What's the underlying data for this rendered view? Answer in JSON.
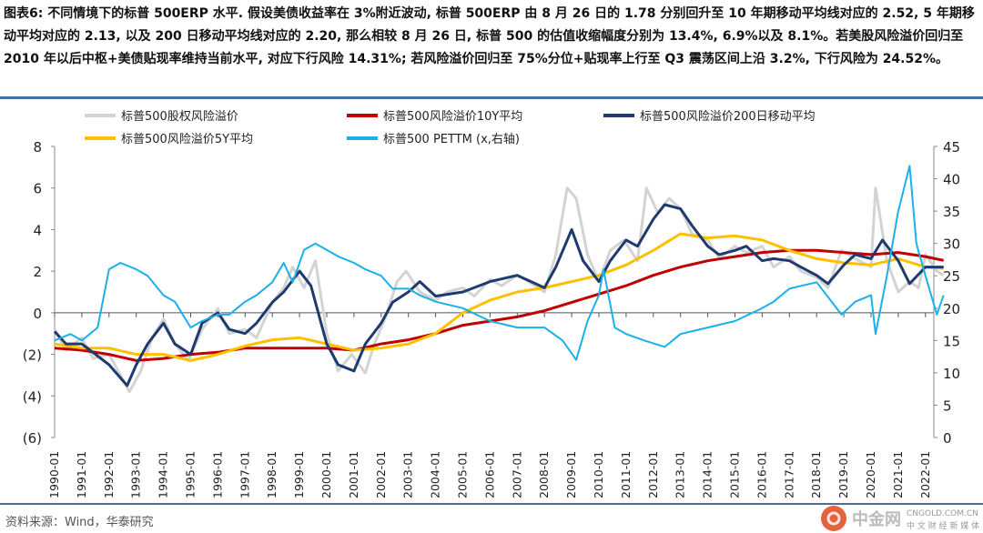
{
  "title": "图表6:  不同情境下的标普 500ERP 水平. 假设美债收益率在 3%附近波动, 标普 500ERP 由 8 月 26 日的 1.78 分别回升至 10 年期移动平均线对应的 2.52, 5 年期移动平均对应的 2.13, 以及 200 日移动平均线对应的 2.20, 那么相较 8 月 26 日, 标普 500 的估值收缩幅度分别为 13.4%, 6.9%以及 8.1%。若美股风险溢价回归至 2010 年以后中枢+美债贴现率维持当前水平, 对应下行风险 14.31%; 若风险溢价回归至 75%分位+贴现率上行至 Q3 震荡区间上沿 3.2%, 下行风险为 24.52%。",
  "source": "资料来源：Wind，华泰研究",
  "watermark": {
    "brand": "中金网",
    "domain": "CNGOLD.COM.CN",
    "tagline": "中 文 财 经 新 媒 体"
  },
  "chart_data": {
    "type": "line",
    "x_ticks": [
      "1990-01",
      "1991-01",
      "1992-01",
      "1993-01",
      "1994-01",
      "1995-01",
      "1996-01",
      "1997-01",
      "1998-01",
      "1999-01",
      "2000-01",
      "2001-01",
      "2002-01",
      "2003-01",
      "2004-01",
      "2005-01",
      "2006-01",
      "2007-01",
      "2008-01",
      "2009-01",
      "2010-01",
      "2011-01",
      "2012-01",
      "2013-01",
      "2014-01",
      "2015-01",
      "2016-01",
      "2017-01",
      "2018-01",
      "2019-01",
      "2020-01",
      "2021-01",
      "2022-01"
    ],
    "y_left": {
      "ticks": [
        "8",
        "6",
        "4",
        "2",
        "0",
        "(2)",
        "(4)",
        "(6)"
      ],
      "values": [
        8,
        6,
        4,
        2,
        0,
        -2,
        -4,
        -6
      ],
      "range": [
        -6,
        8
      ]
    },
    "y_right": {
      "ticks": [
        "45",
        "40",
        "35",
        "30",
        "25",
        "20",
        "15",
        "10",
        "5",
        "0"
      ],
      "values": [
        45,
        40,
        35,
        30,
        25,
        20,
        15,
        10,
        5,
        0
      ],
      "range": [
        0,
        45
      ]
    },
    "legend": [
      {
        "name": "标普500股权风险溢价",
        "color": "#d3d3d3"
      },
      {
        "name": "标普500风险溢价10Y平均",
        "color": "#c00000"
      },
      {
        "name": "标普500风险溢价200日移动平均",
        "color": "#1f3a6e"
      },
      {
        "name": "标普500风险溢价5Y平均",
        "color": "#ffc000"
      },
      {
        "name": "标普500 PETTM (x,右轴)",
        "color": "#1ab0ea"
      }
    ],
    "series": [
      {
        "name": "标普500股权风险溢价",
        "axis": "left",
        "color": "#d3d3d3",
        "width": 3,
        "x": [
          "1990-01",
          "1990-06",
          "1991-01",
          "1991-06",
          "1992-01",
          "1992-06",
          "1992-10",
          "1993-03",
          "1993-08",
          "1994-01",
          "1994-06",
          "1994-12",
          "1995-06",
          "1996-01",
          "1996-06",
          "1997-01",
          "1997-06",
          "1998-01",
          "1998-06",
          "1998-10",
          "1999-03",
          "1999-08",
          "2000-01",
          "2000-06",
          "2000-12",
          "2001-06",
          "2001-10",
          "2002-03",
          "2002-08",
          "2002-12",
          "2003-06",
          "2004-01",
          "2004-06",
          "2005-01",
          "2005-06",
          "2006-01",
          "2006-06",
          "2007-01",
          "2007-06",
          "2008-01",
          "2008-06",
          "2008-11",
          "2009-03",
          "2009-08",
          "2010-01",
          "2010-06",
          "2010-12",
          "2011-06",
          "2011-10",
          "2012-03",
          "2012-08",
          "2013-01",
          "2013-06",
          "2014-01",
          "2014-06",
          "2015-01",
          "2015-06",
          "2016-01",
          "2016-06",
          "2017-01",
          "2017-06",
          "2018-01",
          "2018-06",
          "2018-12",
          "2019-06",
          "2020-01",
          "2020-03",
          "2020-08",
          "2021-01",
          "2021-06",
          "2021-10",
          "2022-01",
          "2022-06",
          "2022-09"
        ],
        "y": [
          -0.8,
          -1.8,
          -1.2,
          -2.2,
          -2.0,
          -3.0,
          -3.8,
          -2.8,
          -1.2,
          -0.3,
          -1.5,
          -2.3,
          -0.8,
          0.2,
          -1.0,
          -0.8,
          -1.2,
          0.5,
          1.2,
          2.2,
          1.2,
          2.5,
          -1.0,
          -2.8,
          -2.0,
          -2.9,
          -1.5,
          -0.2,
          1.5,
          2.0,
          1.0,
          0.6,
          1.0,
          1.2,
          0.8,
          1.6,
          1.3,
          1.8,
          1.5,
          1.0,
          2.8,
          6.0,
          5.5,
          2.8,
          1.5,
          3.0,
          3.5,
          2.5,
          6.0,
          4.8,
          5.5,
          5.0,
          3.8,
          3.5,
          2.6,
          3.2,
          2.9,
          3.2,
          2.2,
          2.7,
          2.0,
          1.7,
          1.2,
          3.0,
          2.6,
          2.2,
          6.0,
          2.5,
          1.0,
          1.5,
          1.2,
          2.8,
          2.0,
          1.8
        ]
      },
      {
        "name": "标普500风险溢价10Y平均",
        "axis": "left",
        "color": "#c00000",
        "width": 3,
        "x": [
          "1990-01",
          "1991-01",
          "1992-01",
          "1993-01",
          "1994-01",
          "1995-01",
          "1996-01",
          "1997-01",
          "1998-01",
          "1999-01",
          "2000-01",
          "2001-01",
          "2002-01",
          "2003-01",
          "2004-01",
          "2005-01",
          "2006-01",
          "2007-01",
          "2008-01",
          "2009-01",
          "2010-01",
          "2011-01",
          "2012-01",
          "2013-01",
          "2014-01",
          "2015-01",
          "2016-01",
          "2017-01",
          "2018-01",
          "2019-01",
          "2020-01",
          "2021-01",
          "2022-01",
          "2022-09"
        ],
        "y": [
          -1.7,
          -1.8,
          -2.0,
          -2.3,
          -2.2,
          -2.0,
          -1.9,
          -1.7,
          -1.7,
          -1.7,
          -1.7,
          -1.8,
          -1.5,
          -1.3,
          -1.0,
          -0.6,
          -0.4,
          -0.2,
          0.1,
          0.5,
          0.9,
          1.3,
          1.8,
          2.2,
          2.5,
          2.7,
          2.9,
          3.0,
          3.0,
          2.9,
          2.8,
          2.9,
          2.7,
          2.52
        ]
      },
      {
        "name": "标普500风险溢价5Y平均",
        "axis": "left",
        "color": "#ffc000",
        "width": 3,
        "x": [
          "1990-01",
          "1991-01",
          "1992-01",
          "1993-01",
          "1994-01",
          "1995-01",
          "1996-01",
          "1997-01",
          "1998-01",
          "1999-01",
          "2000-01",
          "2001-01",
          "2002-01",
          "2003-01",
          "2004-01",
          "2005-01",
          "2006-01",
          "2007-01",
          "2008-01",
          "2009-01",
          "2010-01",
          "2011-01",
          "2012-01",
          "2013-01",
          "2014-01",
          "2015-01",
          "2016-01",
          "2017-01",
          "2018-01",
          "2019-01",
          "2020-01",
          "2021-01",
          "2022-01",
          "2022-09"
        ],
        "y": [
          -1.5,
          -1.7,
          -1.7,
          -2.0,
          -2.0,
          -2.3,
          -2.0,
          -1.6,
          -1.3,
          -1.2,
          -1.5,
          -1.8,
          -1.7,
          -1.5,
          -1.0,
          0.0,
          0.6,
          1.0,
          1.2,
          1.5,
          1.8,
          2.3,
          3.0,
          3.8,
          3.6,
          3.7,
          3.5,
          3.0,
          2.6,
          2.4,
          2.3,
          2.6,
          2.2,
          2.13
        ]
      },
      {
        "name": "标普500风险溢价200日移动平均",
        "axis": "left",
        "color": "#1f3a6e",
        "width": 3,
        "x": [
          "1990-01",
          "1990-06",
          "1991-01",
          "1992-01",
          "1992-09",
          "1993-01",
          "1993-06",
          "1994-01",
          "1994-06",
          "1995-01",
          "1995-06",
          "1996-01",
          "1996-06",
          "1997-01",
          "1997-06",
          "1998-01",
          "1998-06",
          "1999-01",
          "1999-06",
          "2000-01",
          "2000-06",
          "2001-01",
          "2001-06",
          "2002-01",
          "2002-06",
          "2003-01",
          "2003-06",
          "2004-01",
          "2005-01",
          "2006-01",
          "2007-01",
          "2008-01",
          "2008-06",
          "2009-01",
          "2009-06",
          "2010-01",
          "2010-06",
          "2011-01",
          "2011-06",
          "2012-01",
          "2012-06",
          "2013-01",
          "2013-06",
          "2014-01",
          "2014-06",
          "2015-01",
          "2015-06",
          "2016-01",
          "2016-06",
          "2017-01",
          "2017-06",
          "2018-01",
          "2018-06",
          "2019-01",
          "2019-06",
          "2020-01",
          "2020-06",
          "2021-01",
          "2021-06",
          "2022-01",
          "2022-09"
        ],
        "y": [
          -0.9,
          -1.5,
          -1.5,
          -2.5,
          -3.5,
          -2.5,
          -1.5,
          -0.5,
          -1.5,
          -2.0,
          -0.5,
          0.0,
          -0.8,
          -1.0,
          -0.5,
          0.5,
          1.0,
          2.0,
          1.3,
          -1.5,
          -2.5,
          -2.8,
          -1.5,
          -0.5,
          0.5,
          1.0,
          1.5,
          0.8,
          1.0,
          1.5,
          1.8,
          1.2,
          2.2,
          4.0,
          2.5,
          1.5,
          2.5,
          3.5,
          3.2,
          4.5,
          5.2,
          5.0,
          4.2,
          3.2,
          2.8,
          3.0,
          3.2,
          2.5,
          2.6,
          2.5,
          2.2,
          1.8,
          1.4,
          2.3,
          2.8,
          2.6,
          3.5,
          2.5,
          1.4,
          2.2,
          2.2
        ]
      },
      {
        "name": "标普500 PETTM (x,右轴)",
        "axis": "right",
        "color": "#1ab0ea",
        "width": 2,
        "x": [
          "1990-01",
          "1990-08",
          "1991-01",
          "1991-08",
          "1992-01",
          "1992-06",
          "1993-01",
          "1993-06",
          "1994-01",
          "1994-06",
          "1995-01",
          "1995-06",
          "1996-01",
          "1996-06",
          "1997-01",
          "1997-06",
          "1998-01",
          "1998-06",
          "1998-10",
          "1999-03",
          "1999-08",
          "2000-01",
          "2000-06",
          "2001-01",
          "2001-06",
          "2002-01",
          "2002-06",
          "2003-01",
          "2003-06",
          "2004-01",
          "2005-01",
          "2006-01",
          "2007-01",
          "2008-01",
          "2008-09",
          "2009-03",
          "2009-08",
          "2010-01",
          "2010-03",
          "2010-08",
          "2011-01",
          "2011-09",
          "2012-06",
          "2013-01",
          "2014-01",
          "2015-01",
          "2016-01",
          "2016-06",
          "2017-01",
          "2018-01",
          "2018-12",
          "2019-06",
          "2020-01",
          "2020-03",
          "2020-08",
          "2021-01",
          "2021-06",
          "2021-09",
          "2022-01",
          "2022-06",
          "2022-09"
        ],
        "y": [
          15,
          16,
          15,
          17,
          26,
          27,
          26,
          25,
          22,
          21,
          17,
          18,
          19,
          19,
          21,
          22,
          24,
          27,
          24,
          29,
          30,
          29,
          28,
          27,
          26,
          25,
          23,
          23,
          22,
          21,
          20,
          18,
          17,
          17,
          15,
          12,
          18,
          22,
          26,
          17,
          16,
          15,
          14,
          16,
          17,
          18,
          20,
          21,
          23,
          24,
          19,
          21,
          22,
          16,
          25,
          35,
          42,
          30,
          25,
          19,
          22
        ]
      }
    ]
  }
}
